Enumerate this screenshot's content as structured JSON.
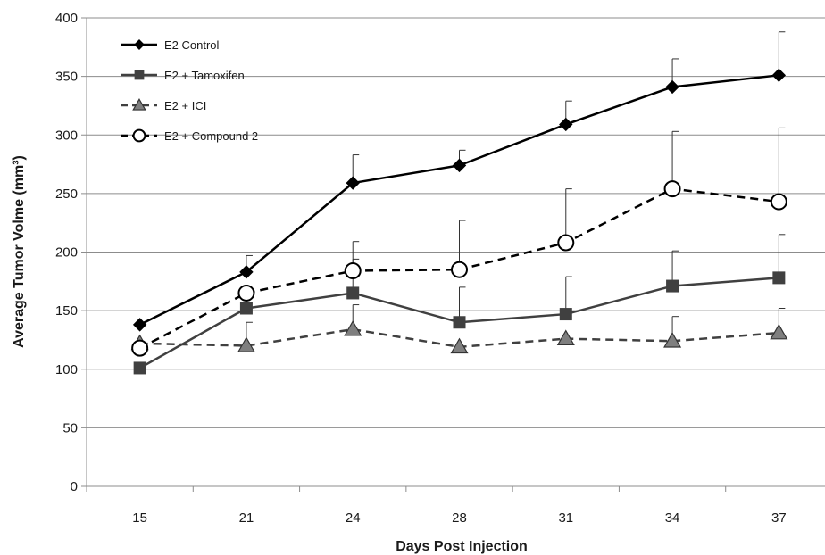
{
  "chart_data": {
    "type": "line",
    "title": "",
    "xlabel": "Days Post Injection",
    "ylabel": "Average Tumor Volme (mm³)",
    "categories": [
      "15",
      "21",
      "24",
      "28",
      "31",
      "34",
      "37"
    ],
    "ylim": [
      0,
      400
    ],
    "yticks": [
      0,
      50,
      100,
      150,
      200,
      250,
      300,
      350,
      400
    ],
    "grid": "horizontal",
    "legend_position": "top-left",
    "series": [
      {
        "name": "E2 Control",
        "values": [
          138,
          183,
          259,
          274,
          309,
          341,
          351
        ],
        "error": [
          0,
          14,
          24,
          13,
          20,
          24,
          37
        ],
        "marker": "diamond",
        "dash": "solid",
        "color": "#000000",
        "fill": "#000000"
      },
      {
        "name": "E2 + Tamoxifen",
        "values": [
          101,
          152,
          165,
          140,
          147,
          171,
          178
        ],
        "error": [
          0,
          0,
          44,
          30,
          32,
          30,
          37
        ],
        "marker": "square",
        "dash": "solid",
        "color": "#404040",
        "fill": "#404040"
      },
      {
        "name": "E2 + ICI",
        "values": [
          122,
          120,
          134,
          119,
          126,
          124,
          131
        ],
        "error": [
          0,
          20,
          21,
          0,
          0,
          21,
          21
        ],
        "marker": "triangle",
        "dash": "dashed",
        "color": "#404040",
        "fill": "#7f7f7f"
      },
      {
        "name": "E2 + Compound 2",
        "values": [
          118,
          165,
          184,
          185,
          208,
          254,
          243
        ],
        "error": [
          0,
          0,
          10,
          42,
          46,
          49,
          63
        ],
        "marker": "circle-open",
        "dash": "dashed",
        "color": "#000000",
        "fill": "#ffffff"
      }
    ]
  }
}
